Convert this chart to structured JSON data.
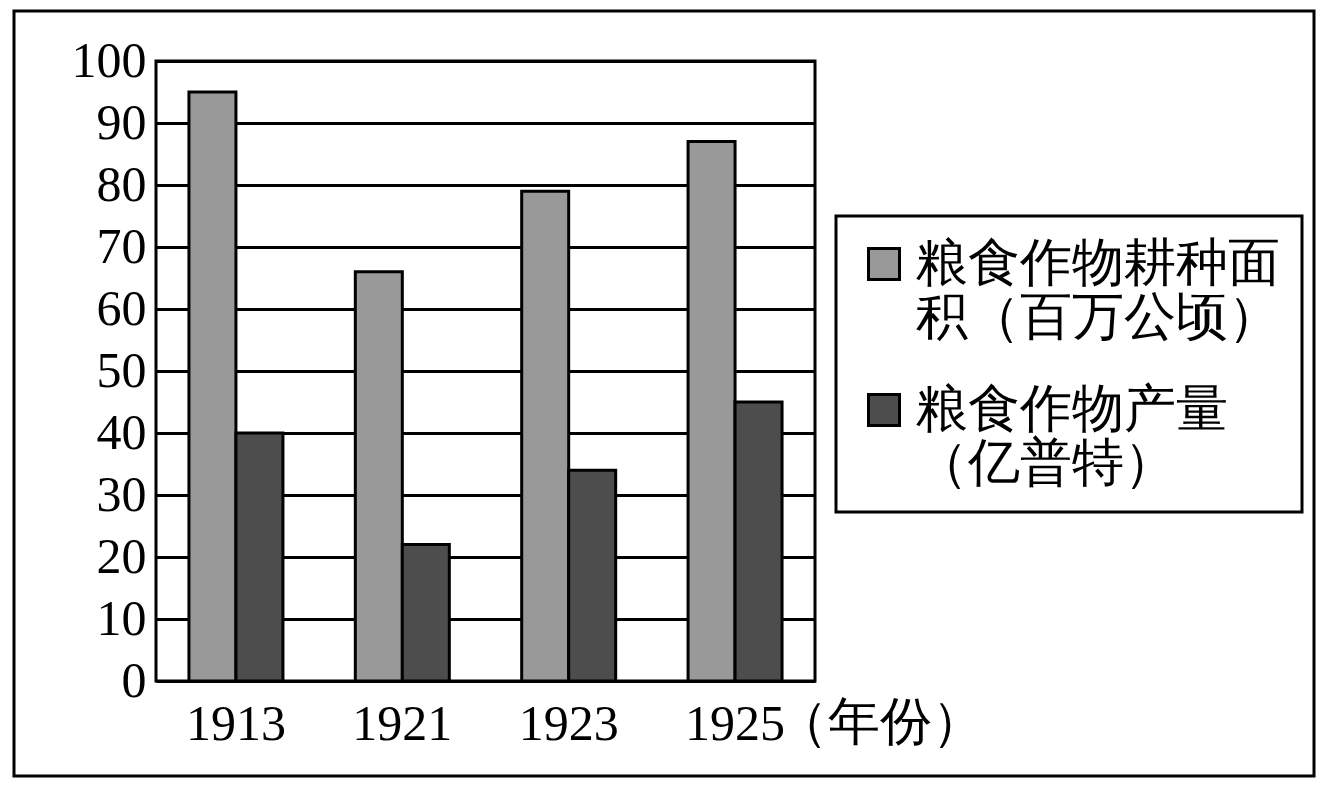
{
  "chart_data": {
    "type": "bar",
    "xlabel": "（年份）",
    "categories": [
      "1913",
      "1921",
      "1923",
      "1925"
    ],
    "series": [
      {
        "name": "粮食作物耕种面积（百万公顷）",
        "color": "#999999",
        "values": [
          95,
          66,
          79,
          87
        ]
      },
      {
        "name": "粮食作物产量（亿普特）",
        "color": "#4d4d4d",
        "values": [
          40,
          22,
          34,
          45
        ]
      }
    ],
    "ylim": [
      0,
      100
    ],
    "yticks": [
      0,
      10,
      20,
      30,
      40,
      50,
      60,
      70,
      80,
      90,
      100
    ],
    "grid": "y",
    "legend": "right"
  }
}
